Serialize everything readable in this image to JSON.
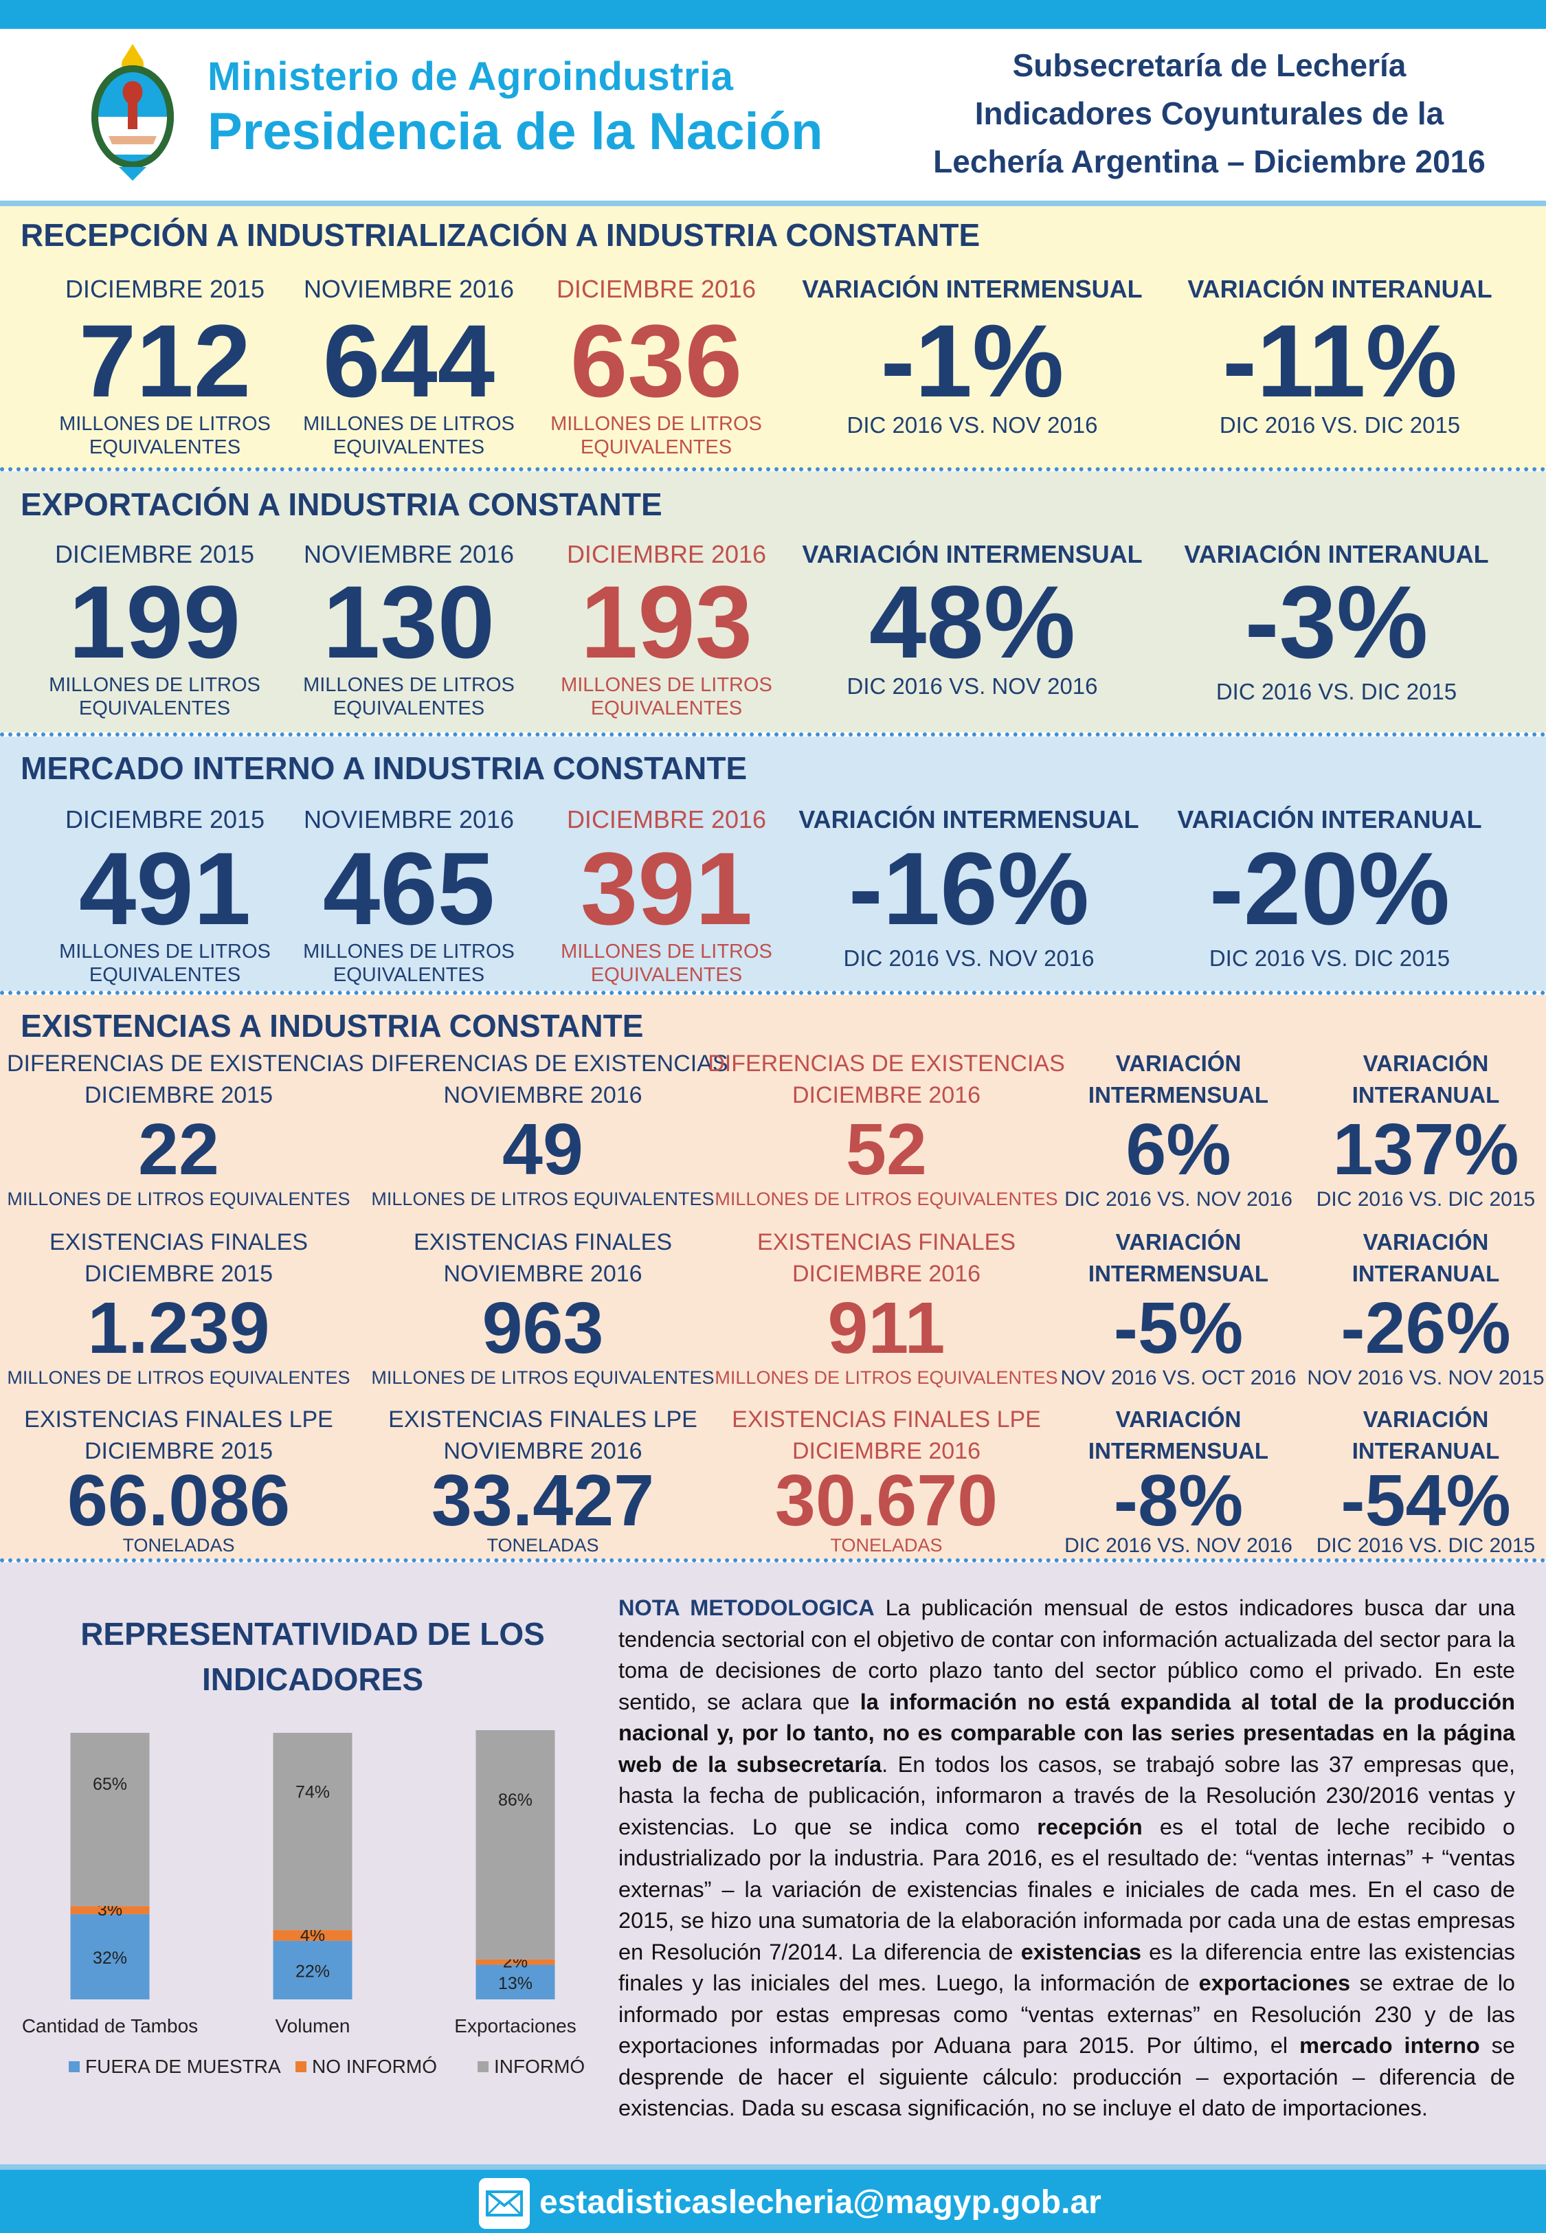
{
  "header": {
    "ministry": "Ministerio de Agroindustria",
    "presidency": "Presidencia de la Nación",
    "title_lines": [
      "Subsecretaría de Lechería",
      "Indicadores Coyunturales de la",
      "Lechería Argentina – Diciembre 2016"
    ]
  },
  "colors": {
    "blue": "#1f3f73",
    "red": "#c0504d",
    "accent": "#1aa7e0",
    "yellow_bg": "#fdf8d0",
    "green_bg": "#e8ecdc",
    "blue_bg": "#d2e6f4",
    "peach_bg": "#fbe6d4",
    "lilac_bg": "#e7e1ec"
  },
  "recepcion": {
    "title": "RECEPCIÓN A INDUSTRIALIZACIÓN A INDUSTRIA CONSTANTE",
    "dic2015": {
      "label": "DICIEMBRE 2015",
      "value": "712",
      "unit1": "MILLONES DE LITROS",
      "unit2": "EQUIVALENTES"
    },
    "nov2016": {
      "label": "NOVIEMBRE 2016",
      "value": "644",
      "unit1": "MILLONES DE LITROS",
      "unit2": "EQUIVALENTES"
    },
    "dic2016": {
      "label": "DICIEMBRE 2016",
      "value": "636",
      "unit1": "MILLONES DE LITROS",
      "unit2": "EQUIVALENTES"
    },
    "intermensual": {
      "label": "VARIACIÓN INTERMENSUAL",
      "value": "-1%",
      "sub": "DIC 2016 VS. NOV 2016"
    },
    "interanual": {
      "label": "VARIACIÓN INTERANUAL",
      "value": "-11%",
      "sub": "DIC 2016 VS. DIC 2015"
    }
  },
  "exportacion": {
    "title": "EXPORTACIÓN A INDUSTRIA CONSTANTE",
    "dic2015": {
      "label": "DICIEMBRE 2015",
      "value": "199",
      "unit1": "MILLONES DE LITROS",
      "unit2": "EQUIVALENTES"
    },
    "nov2016": {
      "label": "NOVIEMBRE 2016",
      "value": "130",
      "unit1": "MILLONES DE LITROS",
      "unit2": "EQUIVALENTES"
    },
    "dic2016": {
      "label": "DICIEMBRE 2016",
      "value": "193",
      "unit1": "MILLONES DE LITROS",
      "unit2": "EQUIVALENTES"
    },
    "intermensual": {
      "label": "VARIACIÓN INTERMENSUAL",
      "value": "48%",
      "sub": "DIC 2016 VS. NOV 2016"
    },
    "interanual": {
      "label": "VARIACIÓN INTERANUAL",
      "value": "-3%",
      "sub": "DIC 2016 VS. DIC 2015"
    }
  },
  "mercado": {
    "title": "MERCADO INTERNO A INDUSTRIA CONSTANTE",
    "dic2015": {
      "label": "DICIEMBRE 2015",
      "value": "491",
      "unit1": "MILLONES DE LITROS",
      "unit2": "EQUIVALENTES"
    },
    "nov2016": {
      "label": "NOVIEMBRE 2016",
      "value": "465",
      "unit1": "MILLONES DE LITROS",
      "unit2": "EQUIVALENTES"
    },
    "dic2016": {
      "label": "DICIEMBRE 2016",
      "value": "391",
      "unit1": "MILLONES DE LITROS",
      "unit2": "EQUIVALENTES"
    },
    "intermensual": {
      "label": "VARIACIÓN INTERMENSUAL",
      "value": "-16%",
      "sub": "DIC 2016 VS. NOV 2016"
    },
    "interanual": {
      "label": "VARIACIÓN INTERANUAL",
      "value": "-20%",
      "sub": "DIC 2016 VS. DIC 2015"
    }
  },
  "existencias": {
    "title": "EXISTENCIAS A INDUSTRIA CONSTANTE",
    "rows": [
      {
        "c1": {
          "l1": "DIFERENCIAS DE EXISTENCIAS",
          "l2": "DICIEMBRE 2015",
          "value": "22",
          "unit": "MILLONES DE LITROS EQUIVALENTES"
        },
        "c2": {
          "l1": "DIFERENCIAS DE EXISTENCIAS",
          "l2": "NOVIEMBRE 2016",
          "value": "49",
          "unit": "MILLONES DE LITROS EQUIVALENTES"
        },
        "c3": {
          "l1": "DIFERENCIAS DE EXISTENCIAS",
          "l2": "DICIEMBRE 2016",
          "value": "52",
          "unit": "MILLONES DE LITROS EQUIVALENTES"
        },
        "c4": {
          "l1": "VARIACIÓN",
          "l2": "INTERMENSUAL",
          "value": "6%",
          "sub": "DIC 2016 VS. NOV 2016"
        },
        "c5": {
          "l1": "VARIACIÓN",
          "l2": "INTERANUAL",
          "value": "137%",
          "sub": "DIC 2016 VS. DIC 2015"
        }
      },
      {
        "c1": {
          "l1": "EXISTENCIAS FINALES",
          "l2": "DICIEMBRE 2015",
          "value": "1.239",
          "unit": "MILLONES DE LITROS EQUIVALENTES"
        },
        "c2": {
          "l1": "EXISTENCIAS FINALES",
          "l2": "NOVIEMBRE 2016",
          "value": "963",
          "unit": "MILLONES DE LITROS EQUIVALENTES"
        },
        "c3": {
          "l1": "EXISTENCIAS FINALES",
          "l2": "DICIEMBRE 2016",
          "value": "911",
          "unit": "MILLONES DE LITROS EQUIVALENTES"
        },
        "c4": {
          "l1": "VARIACIÓN",
          "l2": "INTERMENSUAL",
          "value": "-5%",
          "sub": "NOV 2016 VS. OCT 2016"
        },
        "c5": {
          "l1": "VARIACIÓN",
          "l2": "INTERANUAL",
          "value": "-26%",
          "sub": "NOV 2016 VS. NOV 2015"
        }
      },
      {
        "c1": {
          "l1": "EXISTENCIAS FINALES LPE",
          "l2": "DICIEMBRE 2015",
          "value": "66.086",
          "unit": "TONELADAS"
        },
        "c2": {
          "l1": "EXISTENCIAS FINALES LPE",
          "l2": "NOVIEMBRE 2016",
          "value": "33.427",
          "unit": "TONELADAS"
        },
        "c3": {
          "l1": "EXISTENCIAS FINALES LPE",
          "l2": "DICIEMBRE 2016",
          "value": "30.670",
          "unit": "TONELADAS"
        },
        "c4": {
          "l1": "VARIACIÓN",
          "l2": "INTERMENSUAL",
          "value": "-8%",
          "sub": "DIC 2016 VS. NOV 2016"
        },
        "c5": {
          "l1": "VARIACIÓN",
          "l2": "INTERANUAL",
          "value": "-54%",
          "sub": "DIC 2016 VS. DIC 2015"
        }
      }
    ]
  },
  "representatividad": {
    "title_lines": [
      "REPRESENTATIVIDAD DE LOS",
      "INDICADORES"
    ]
  },
  "chart_data": {
    "type": "bar",
    "stacked": true,
    "categories": [
      "Cantidad de Tambos",
      "Volumen",
      "Exportaciones"
    ],
    "series": [
      {
        "name": "FUERA DE MUESTRA",
        "values": [
          32,
          22,
          13
        ],
        "labels": [
          "32%",
          "22%",
          "13%"
        ],
        "color": "#5b9bd5"
      },
      {
        "name": "NO INFORMÓ",
        "values": [
          3,
          4,
          2
        ],
        "labels": [
          "3%",
          "4%",
          "2%"
        ],
        "color": "#ed7d31"
      },
      {
        "name": "INFORMÓ",
        "values": [
          65,
          74,
          86
        ],
        "labels": [
          "65%",
          "74%",
          "86%"
        ],
        "color": "#a5a5a5"
      }
    ],
    "ylim": [
      0,
      100
    ],
    "legend": "bottom",
    "grid": false
  },
  "nota": {
    "heading": "NOTA METODOLOGICA",
    "p1": " La publicación mensual de estos indicadores busca dar una tendencia sectorial con el objetivo de contar con información actualizada del sector para la toma de decisiones de corto plazo tanto del sector público como el privado. En este sentido, se aclara que ",
    "b1": "la información no está expandida al total de la producción nacional y, por lo tanto, no es comparable con las series presentadas en la página web de la subsecretaría",
    "p2": ". En todos los casos, se trabajó sobre las 37 empresas que, hasta la fecha de publicación, informaron a través de la Resolución 230/2016 ventas y existencias. Lo que se indica como ",
    "b2": "recepción",
    "p3": " es el total de leche recibido o industrializado por la industria. Para 2016, es el resultado de: “ventas internas” + “ventas externas” – la variación de existencias finales e iniciales de cada mes. En el caso de 2015, se hizo una sumatoria de la elaboración informada por cada una de estas empresas en Resolución 7/2014. La diferencia de ",
    "b3": "existencias",
    "p4": " es la diferencia entre las existencias finales y las iniciales del mes. Luego, la información de ",
    "b4": "exportaciones",
    "p5": " se extrae de lo informado por estas empresas como “ventas externas” en Resolución 230 y de las exportaciones informadas por Aduana para 2015. Por último, el ",
    "b5": "mercado interno",
    "p6": " se desprende de hacer el siguiente cálculo: producción – exportación – diferencia de existencias. Dada su escasa significación, no se incluye el dato de importaciones."
  },
  "footer": {
    "email": "estadisticaslecheria@magyp.gob.ar",
    "icon": "mail-icon"
  }
}
